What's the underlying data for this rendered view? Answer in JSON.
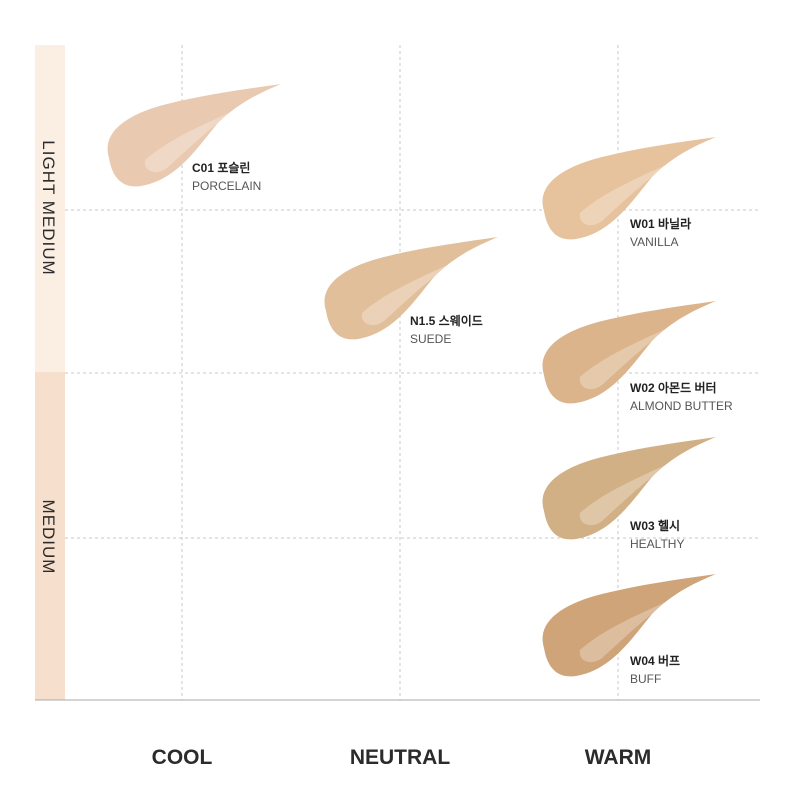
{
  "rows": [
    "LIGHT MEDIUM",
    "MEDIUM"
  ],
  "columns": [
    "COOL",
    "NEUTRAL",
    "WARM"
  ],
  "shades": [
    {
      "name": "C01 포슬린",
      "english": "PORCELAIN",
      "color": "#e9c9af"
    },
    {
      "name": "N1.5 스웨이드",
      "english": "SUEDE",
      "color": "#e2bf9b"
    },
    {
      "name": "W01 바닐라",
      "english": "VANILLA",
      "color": "#e6c29d"
    },
    {
      "name": "W02 아몬드 버터",
      "english": "ALMOND BUTTER",
      "color": "#dbb48b"
    },
    {
      "name": "W03 헬시",
      "english": "HEALTHY",
      "color": "#d2b086"
    },
    {
      "name": "W04 버프",
      "english": "BUFF",
      "color": "#cfa479"
    }
  ]
}
